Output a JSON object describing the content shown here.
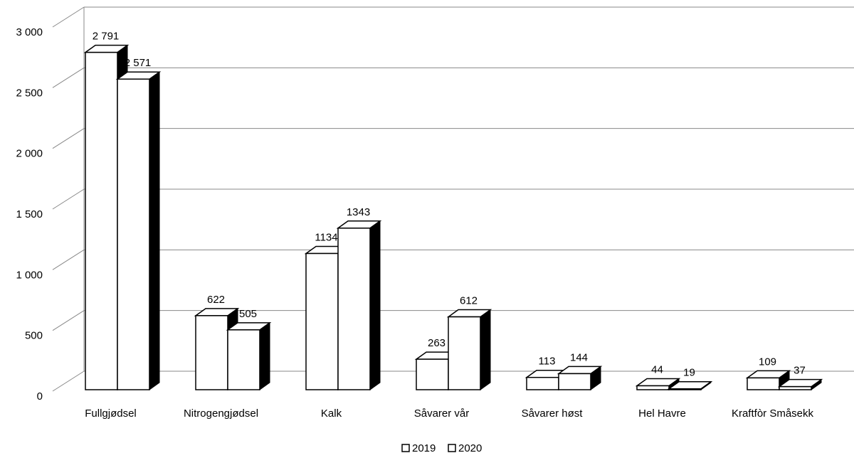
{
  "chart_data": {
    "type": "bar3d",
    "categories": [
      "Fullgjødsel",
      "Nitrogengjødsel",
      "Kalk",
      "Såvarer vår",
      "Såvarer høst",
      "Hel Havre",
      "Kraftfòr Småsekk"
    ],
    "series": [
      {
        "name": "2019",
        "color": "#ffffff",
        "values": [
          2791,
          622,
          1134,
          263,
          113,
          44,
          109
        ],
        "value_labels": [
          "2 791",
          "622",
          "1134",
          "263",
          "113",
          "44",
          "109"
        ]
      },
      {
        "name": "2020",
        "color": "#ffffff",
        "values": [
          2571,
          505,
          1343,
          612,
          144,
          19,
          37
        ],
        "value_labels": [
          "2 571",
          "505",
          "1343",
          "612",
          "144",
          "19",
          "37"
        ]
      }
    ],
    "ylim": [
      0,
      3000
    ],
    "yticks": [
      0,
      500,
      {
        "value": 1000,
        "label": "1 000"
      },
      {
        "value": 1500,
        "label": "1 500"
      },
      {
        "value": 2000,
        "label": "2 000"
      },
      {
        "value": 2500,
        "label": "2 500"
      },
      {
        "value": 3000,
        "label": "3 000"
      }
    ],
    "grid": true,
    "legend": "bottom"
  }
}
